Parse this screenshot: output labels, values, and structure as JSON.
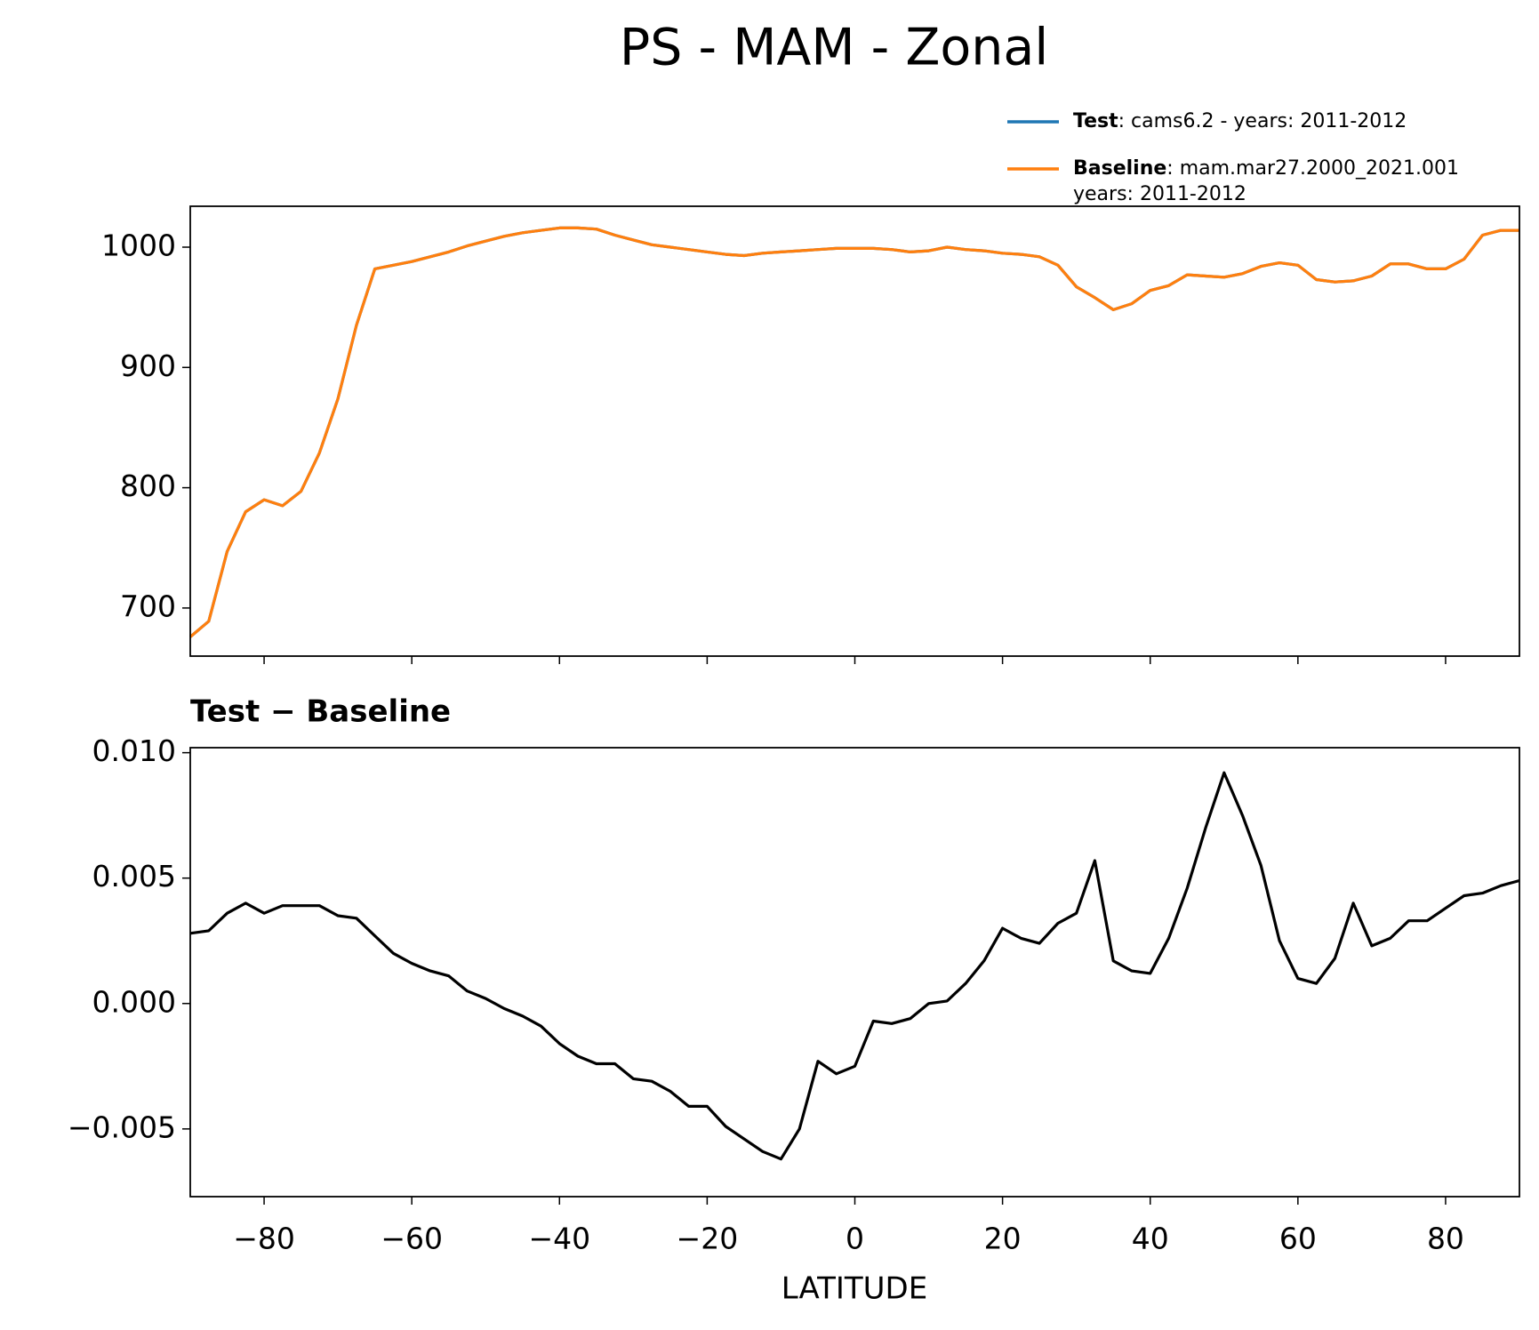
{
  "chart_data": [
    {
      "type": "line",
      "title": "PS - MAM - Zonal",
      "x": [
        -90,
        -87.5,
        -85,
        -82.5,
        -80,
        -77.5,
        -75,
        -72.5,
        -70,
        -67.5,
        -65,
        -62.5,
        -60,
        -57.5,
        -55,
        -52.5,
        -50,
        -47.5,
        -45,
        -42.5,
        -40,
        -37.5,
        -35,
        -32.5,
        -30,
        -27.5,
        -25,
        -22.5,
        -20,
        -17.5,
        -15,
        -12.5,
        -10,
        -7.5,
        -5,
        -2.5,
        0,
        2.5,
        5,
        7.5,
        10,
        12.5,
        15,
        17.5,
        20,
        22.5,
        25,
        27.5,
        30,
        32.5,
        35,
        37.5,
        40,
        42.5,
        45,
        47.5,
        50,
        52.5,
        55,
        57.5,
        60,
        62.5,
        65,
        67.5,
        70,
        72.5,
        75,
        77.5,
        80,
        82.5,
        85,
        87.5,
        90
      ],
      "series": [
        {
          "name": "Test",
          "label": [
            ": cams6.2 - years: 2011-2012"
          ],
          "color": "#1f77b4",
          "values": [
            676,
            689,
            747,
            780,
            790,
            785,
            797,
            829,
            874,
            935,
            982,
            985,
            988,
            992,
            996,
            1001,
            1005,
            1009,
            1012,
            1014,
            1016,
            1016,
            1015,
            1010,
            1006,
            1002,
            1000,
            998,
            996,
            994,
            993,
            995,
            996,
            997,
            998,
            999,
            999,
            999,
            998,
            996,
            997,
            1000,
            998,
            997,
            995,
            994,
            992,
            985,
            967,
            958,
            948,
            953,
            964,
            968,
            977,
            976,
            975,
            978,
            984,
            987,
            985,
            973,
            971,
            972,
            976,
            986,
            986,
            982,
            982,
            990,
            1010,
            1014,
            1014
          ]
        },
        {
          "name": "Baseline",
          "label": [
            ": mam.mar27.2000_2021.001",
            "years: 2011-2012"
          ],
          "color": "#ff7f0e",
          "values": [
            676,
            689,
            747,
            780,
            790,
            785,
            797,
            829,
            874,
            935,
            982,
            985,
            988,
            992,
            996,
            1001,
            1005,
            1009,
            1012,
            1014,
            1016,
            1016,
            1015,
            1010,
            1006,
            1002,
            1000,
            998,
            996,
            994,
            993,
            995,
            996,
            997,
            998,
            999,
            999,
            999,
            998,
            996,
            997,
            1000,
            998,
            997,
            995,
            994,
            992,
            985,
            967,
            958,
            948,
            953,
            964,
            968,
            977,
            976,
            975,
            978,
            984,
            987,
            985,
            973,
            971,
            972,
            976,
            986,
            986,
            982,
            982,
            990,
            1010,
            1014,
            1014
          ]
        }
      ],
      "xlim": [
        -90,
        90
      ],
      "ylim": [
        660,
        1034
      ],
      "yticks": [
        700,
        800,
        900,
        1000
      ],
      "legend": "upper right"
    },
    {
      "type": "line",
      "title": "Test − Baseline",
      "x_label": "LATITUDE",
      "x": [
        -90,
        -87.5,
        -85,
        -82.5,
        -80,
        -77.5,
        -75,
        -72.5,
        -70,
        -67.5,
        -65,
        -62.5,
        -60,
        -57.5,
        -55,
        -52.5,
        -50,
        -47.5,
        -45,
        -42.5,
        -40,
        -37.5,
        -35,
        -32.5,
        -30,
        -27.5,
        -25,
        -22.5,
        -20,
        -17.5,
        -15,
        -12.5,
        -10,
        -7.5,
        -5,
        -2.5,
        0,
        2.5,
        5,
        7.5,
        10,
        12.5,
        15,
        17.5,
        20,
        22.5,
        25,
        27.5,
        30,
        32.5,
        35,
        37.5,
        40,
        42.5,
        45,
        47.5,
        50,
        52.5,
        55,
        57.5,
        60,
        62.5,
        65,
        67.5,
        70,
        72.5,
        75,
        77.5,
        80,
        82.5,
        85,
        87.5,
        90
      ],
      "values": [
        0.0028,
        0.0029,
        0.0036,
        0.004,
        0.0036,
        0.0039,
        0.0039,
        0.0039,
        0.0035,
        0.0034,
        0.0027,
        0.002,
        0.0016,
        0.0013,
        0.0011,
        0.0005,
        0.0002,
        -0.0002,
        -0.0005,
        -0.0009,
        -0.0016,
        -0.0021,
        -0.0024,
        -0.0024,
        -0.003,
        -0.0031,
        -0.0035,
        -0.0041,
        -0.0041,
        -0.0049,
        -0.0054,
        -0.0059,
        -0.0062,
        -0.005,
        -0.0023,
        -0.0028,
        -0.0025,
        -0.0007,
        -0.0008,
        -0.0006,
        0,
        0.0001,
        0.0008,
        0.0017,
        0.003,
        0.0026,
        0.0024,
        0.0032,
        0.0036,
        0.0057,
        0.0017,
        0.0013,
        0.0012,
        0.0026,
        0.0046,
        0.007,
        0.0092,
        0.0075,
        0.0055,
        0.0025,
        0.001,
        0.0008,
        0.0018,
        0.004,
        0.0023,
        0.0026,
        0.0033,
        0.0033,
        0.0038,
        0.0043,
        0.0044,
        0.0047,
        0.0049
      ],
      "color": "#000000",
      "xlim": [
        -90,
        90
      ],
      "xticks": [
        {
          "value": -80,
          "label": "−80"
        },
        {
          "value": -60,
          "label": "−60"
        },
        {
          "value": -40,
          "label": "−40"
        },
        {
          "value": -20,
          "label": "−20"
        },
        0,
        20,
        40,
        60,
        80
      ],
      "ylim": [
        -0.0077,
        0.0102
      ],
      "yticks": [
        {
          "value": -0.005,
          "label": "−0.005"
        },
        {
          "value": 0,
          "label": "0.000"
        },
        0.005,
        {
          "value": 0.01,
          "label": "0.010"
        }
      ]
    }
  ]
}
